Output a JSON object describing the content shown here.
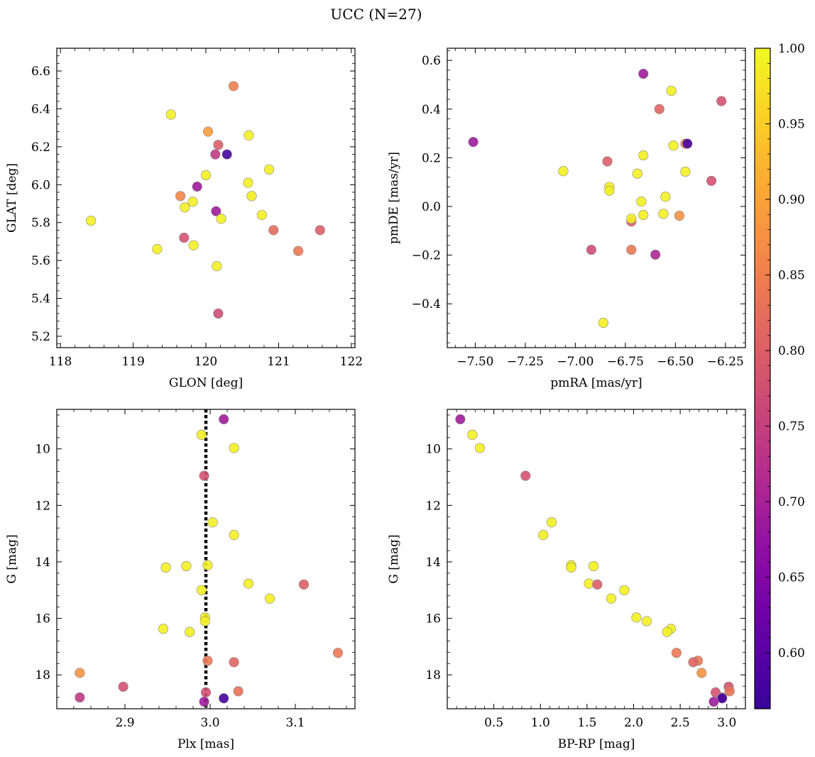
{
  "figure": {
    "title": "UCC (N=27)"
  },
  "colorbar": {
    "colormap": "plasma",
    "range": [
      0.563,
      1.0
    ],
    "ticks": [
      0.6,
      0.65,
      0.7,
      0.75,
      0.8,
      0.85,
      0.9,
      0.95,
      1.0
    ],
    "tick_labels": [
      "0.60",
      "0.65",
      "0.70",
      "0.75",
      "0.80",
      "0.85",
      "0.90",
      "0.95",
      "1.00"
    ]
  },
  "chart_data": [
    {
      "type": "scatter",
      "xlabel": "GLON [deg]",
      "ylabel": "GLAT [deg]",
      "xlim": [
        117.95,
        122.05
      ],
      "ylim": [
        5.14,
        6.72
      ],
      "xticks": [
        118,
        119,
        120,
        121,
        122
      ],
      "xtick_labels": [
        "118",
        "119",
        "120",
        "121",
        "122"
      ],
      "yticks": [
        5.2,
        5.4,
        5.6,
        5.8,
        6.0,
        6.2,
        6.4,
        6.6
      ],
      "ytick_labels": [
        "5.2",
        "5.4",
        "5.6",
        "5.8",
        "6.0",
        "6.2",
        "6.4",
        "6.6"
      ],
      "grid": false,
      "points": [
        {
          "x": 118.42,
          "y": 5.81,
          "c": 0.99
        },
        {
          "x": 119.33,
          "y": 5.66,
          "c": 0.99
        },
        {
          "x": 119.52,
          "y": 6.37,
          "c": 0.99
        },
        {
          "x": 119.65,
          "y": 5.94,
          "c": 0.86
        },
        {
          "x": 119.7,
          "y": 5.72,
          "c": 0.78
        },
        {
          "x": 119.71,
          "y": 5.88,
          "c": 0.99
        },
        {
          "x": 119.82,
          "y": 5.91,
          "c": 0.99
        },
        {
          "x": 119.83,
          "y": 5.68,
          "c": 0.99
        },
        {
          "x": 119.88,
          "y": 5.99,
          "c": 0.69
        },
        {
          "x": 120.0,
          "y": 6.05,
          "c": 0.99
        },
        {
          "x": 120.03,
          "y": 6.28,
          "c": 0.89
        },
        {
          "x": 120.13,
          "y": 6.16,
          "c": 0.74
        },
        {
          "x": 120.14,
          "y": 5.86,
          "c": 0.69
        },
        {
          "x": 120.15,
          "y": 5.57,
          "c": 0.99
        },
        {
          "x": 120.17,
          "y": 6.21,
          "c": 0.8
        },
        {
          "x": 120.17,
          "y": 5.32,
          "c": 0.77
        },
        {
          "x": 120.21,
          "y": 5.82,
          "c": 0.99
        },
        {
          "x": 120.29,
          "y": 6.16,
          "c": 0.58
        },
        {
          "x": 120.38,
          "y": 6.52,
          "c": 0.85
        },
        {
          "x": 120.58,
          "y": 6.01,
          "c": 0.99
        },
        {
          "x": 120.59,
          "y": 6.26,
          "c": 0.99
        },
        {
          "x": 120.63,
          "y": 5.94,
          "c": 0.99
        },
        {
          "x": 120.77,
          "y": 5.84,
          "c": 0.99
        },
        {
          "x": 120.87,
          "y": 6.08,
          "c": 0.99
        },
        {
          "x": 120.93,
          "y": 5.76,
          "c": 0.82
        },
        {
          "x": 121.27,
          "y": 5.65,
          "c": 0.84
        },
        {
          "x": 121.57,
          "y": 5.76,
          "c": 0.8
        }
      ]
    },
    {
      "type": "scatter",
      "xlabel": "pmRA [mas/yr]",
      "ylabel": "pmDE [mas/yr]",
      "xlim": [
        -7.64,
        -6.15
      ],
      "ylim": [
        -0.58,
        0.65
      ],
      "xticks": [
        -7.5,
        -7.25,
        -7.0,
        -6.75,
        -6.5,
        -6.25
      ],
      "xtick_labels": [
        "−7.50",
        "−7.25",
        "−7.00",
        "−6.75",
        "−6.50",
        "−6.25"
      ],
      "yticks": [
        -0.4,
        -0.2,
        0.0,
        0.2,
        0.4,
        0.6
      ],
      "ytick_labels": [
        "−0.4",
        "−0.2",
        "0.0",
        "0.2",
        "0.4",
        "0.6"
      ],
      "grid": false,
      "points": [
        {
          "x": -7.51,
          "y": 0.265,
          "c": 0.69
        },
        {
          "x": -7.06,
          "y": 0.145,
          "c": 0.99
        },
        {
          "x": -6.92,
          "y": -0.178,
          "c": 0.77
        },
        {
          "x": -6.86,
          "y": -0.478,
          "c": 0.99
        },
        {
          "x": -6.84,
          "y": 0.185,
          "c": 0.8
        },
        {
          "x": -6.83,
          "y": 0.08,
          "c": 0.99
        },
        {
          "x": -6.83,
          "y": 0.065,
          "c": 0.99
        },
        {
          "x": -6.72,
          "y": -0.062,
          "c": 0.8
        },
        {
          "x": -6.72,
          "y": -0.05,
          "c": 0.99
        },
        {
          "x": -6.72,
          "y": -0.178,
          "c": 0.84
        },
        {
          "x": -6.69,
          "y": 0.135,
          "c": 0.99
        },
        {
          "x": -6.67,
          "y": 0.02,
          "c": 0.99
        },
        {
          "x": -6.66,
          "y": 0.21,
          "c": 0.99
        },
        {
          "x": -6.66,
          "y": -0.035,
          "c": 0.99
        },
        {
          "x": -6.66,
          "y": 0.545,
          "c": 0.69
        },
        {
          "x": -6.6,
          "y": -0.198,
          "c": 0.71
        },
        {
          "x": -6.58,
          "y": 0.4,
          "c": 0.81
        },
        {
          "x": -6.56,
          "y": -0.03,
          "c": 0.99
        },
        {
          "x": -6.55,
          "y": 0.04,
          "c": 0.99
        },
        {
          "x": -6.52,
          "y": 0.475,
          "c": 0.99
        },
        {
          "x": -6.51,
          "y": 0.25,
          "c": 0.99
        },
        {
          "x": -6.48,
          "y": -0.038,
          "c": 0.88
        },
        {
          "x": -6.45,
          "y": 0.258,
          "c": 0.86
        },
        {
          "x": -6.44,
          "y": 0.258,
          "c": 0.58
        },
        {
          "x": -6.45,
          "y": 0.143,
          "c": 0.99
        },
        {
          "x": -6.32,
          "y": 0.105,
          "c": 0.78
        },
        {
          "x": -6.27,
          "y": 0.433,
          "c": 0.78
        }
      ]
    },
    {
      "type": "scatter",
      "xlabel": "Plx [mas]",
      "ylabel": "G [mag]",
      "xlim": [
        2.82,
        3.17
      ],
      "ylim": [
        19.2,
        8.6
      ],
      "y_inverted": true,
      "xticks": [
        2.9,
        3.0,
        3.1
      ],
      "xtick_labels": [
        "2.9",
        "3.0",
        "3.1"
      ],
      "yticks": [
        10,
        12,
        14,
        16,
        18
      ],
      "ytick_labels": [
        "10",
        "12",
        "14",
        "16",
        "18"
      ],
      "grid": false,
      "reference_line": {
        "x": 2.995,
        "style": "dotted",
        "color": "#000000"
      },
      "points": [
        {
          "x": 3.016,
          "y": 8.95,
          "c": 0.69
        },
        {
          "x": 2.99,
          "y": 9.5,
          "c": 0.99
        },
        {
          "x": 3.028,
          "y": 9.97,
          "c": 0.99
        },
        {
          "x": 2.993,
          "y": 10.95,
          "c": 0.78
        },
        {
          "x": 3.003,
          "y": 12.6,
          "c": 0.99
        },
        {
          "x": 3.028,
          "y": 13.05,
          "c": 0.99
        },
        {
          "x": 2.997,
          "y": 14.12,
          "c": 0.99
        },
        {
          "x": 2.948,
          "y": 14.2,
          "c": 0.99
        },
        {
          "x": 2.972,
          "y": 14.15,
          "c": 0.99
        },
        {
          "x": 3.045,
          "y": 14.77,
          "c": 0.99
        },
        {
          "x": 3.11,
          "y": 14.8,
          "c": 0.8
        },
        {
          "x": 2.99,
          "y": 15.0,
          "c": 0.99
        },
        {
          "x": 3.07,
          "y": 15.3,
          "c": 0.99
        },
        {
          "x": 2.994,
          "y": 15.97,
          "c": 0.99
        },
        {
          "x": 2.994,
          "y": 16.1,
          "c": 0.99
        },
        {
          "x": 2.945,
          "y": 16.37,
          "c": 0.99
        },
        {
          "x": 2.976,
          "y": 16.48,
          "c": 0.99
        },
        {
          "x": 3.15,
          "y": 17.22,
          "c": 0.84
        },
        {
          "x": 2.997,
          "y": 17.5,
          "c": 0.84
        },
        {
          "x": 3.028,
          "y": 17.55,
          "c": 0.81
        },
        {
          "x": 2.847,
          "y": 17.93,
          "c": 0.88
        },
        {
          "x": 2.898,
          "y": 18.42,
          "c": 0.78
        },
        {
          "x": 3.033,
          "y": 18.58,
          "c": 0.83
        },
        {
          "x": 2.995,
          "y": 18.62,
          "c": 0.78
        },
        {
          "x": 2.847,
          "y": 18.8,
          "c": 0.74
        },
        {
          "x": 3.016,
          "y": 18.83,
          "c": 0.58
        },
        {
          "x": 2.993,
          "y": 18.95,
          "c": 0.69
        }
      ]
    },
    {
      "type": "scatter",
      "xlabel": "BP-RP [mag]",
      "ylabel": "G [mag]",
      "xlim": [
        0.0,
        3.2
      ],
      "ylim": [
        19.2,
        8.6
      ],
      "y_inverted": true,
      "xticks": [
        0.5,
        1.0,
        1.5,
        2.0,
        2.5,
        3.0
      ],
      "xtick_labels": [
        "0.5",
        "1.0",
        "1.5",
        "2.0",
        "2.5",
        "3.0"
      ],
      "yticks": [
        10,
        12,
        14,
        16,
        18
      ],
      "ytick_labels": [
        "10",
        "12",
        "14",
        "16",
        "18"
      ],
      "grid": false,
      "points": [
        {
          "x": 0.14,
          "y": 8.95,
          "c": 0.69
        },
        {
          "x": 0.27,
          "y": 9.5,
          "c": 0.99
        },
        {
          "x": 0.35,
          "y": 9.97,
          "c": 0.99
        },
        {
          "x": 0.84,
          "y": 10.95,
          "c": 0.78
        },
        {
          "x": 1.12,
          "y": 12.6,
          "c": 0.99
        },
        {
          "x": 1.03,
          "y": 13.05,
          "c": 0.99
        },
        {
          "x": 1.33,
          "y": 14.12,
          "c": 0.99
        },
        {
          "x": 1.33,
          "y": 14.2,
          "c": 0.99
        },
        {
          "x": 1.57,
          "y": 14.15,
          "c": 0.99
        },
        {
          "x": 1.52,
          "y": 14.77,
          "c": 0.99
        },
        {
          "x": 1.61,
          "y": 14.8,
          "c": 0.8
        },
        {
          "x": 1.9,
          "y": 15.0,
          "c": 0.99
        },
        {
          "x": 1.76,
          "y": 15.3,
          "c": 0.99
        },
        {
          "x": 2.03,
          "y": 15.97,
          "c": 0.99
        },
        {
          "x": 2.14,
          "y": 16.1,
          "c": 0.99
        },
        {
          "x": 2.4,
          "y": 16.37,
          "c": 0.99
        },
        {
          "x": 2.36,
          "y": 16.48,
          "c": 0.99
        },
        {
          "x": 2.46,
          "y": 17.22,
          "c": 0.84
        },
        {
          "x": 2.69,
          "y": 17.5,
          "c": 0.84
        },
        {
          "x": 2.64,
          "y": 17.55,
          "c": 0.81
        },
        {
          "x": 2.73,
          "y": 17.93,
          "c": 0.88
        },
        {
          "x": 3.02,
          "y": 18.42,
          "c": 0.78
        },
        {
          "x": 3.03,
          "y": 18.58,
          "c": 0.83
        },
        {
          "x": 2.88,
          "y": 18.62,
          "c": 0.78
        },
        {
          "x": 2.95,
          "y": 18.8,
          "c": 0.74
        },
        {
          "x": 2.95,
          "y": 18.83,
          "c": 0.58
        },
        {
          "x": 2.86,
          "y": 18.95,
          "c": 0.69
        }
      ]
    }
  ]
}
